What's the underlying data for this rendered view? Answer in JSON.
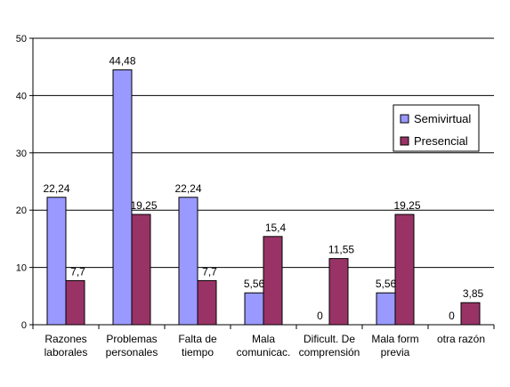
{
  "chart_data": {
    "type": "bar",
    "title": "",
    "xlabel": "",
    "ylabel": "",
    "ylim": [
      0,
      50
    ],
    "yticks": [
      0,
      10,
      20,
      30,
      40,
      50
    ],
    "grid": true,
    "legend_position": "right",
    "categories": [
      [
        "Razones",
        "laborales"
      ],
      [
        "Problemas",
        "personales"
      ],
      [
        "Falta de",
        "tiempo"
      ],
      [
        "Mala",
        "comunicac."
      ],
      [
        "Dificult. De",
        "comprensión"
      ],
      [
        "Mala form",
        "previa"
      ],
      [
        "otra razón"
      ]
    ],
    "series": [
      {
        "name": "Semivirtual",
        "color": "#9999ff",
        "values": [
          22.24,
          44.48,
          22.24,
          5.56,
          0,
          5.56,
          0
        ],
        "labels": [
          "22,24",
          "44,48",
          "22,24",
          "5,56",
          "0",
          "5,56",
          "0"
        ]
      },
      {
        "name": "Presencial",
        "color": "#993366",
        "values": [
          7.7,
          19.25,
          7.7,
          15.4,
          11.55,
          19.25,
          3.85
        ],
        "labels": [
          "7,7",
          "19,25",
          "7,7",
          "15,4",
          "11,55",
          "19,25",
          "3,85"
        ]
      }
    ]
  }
}
